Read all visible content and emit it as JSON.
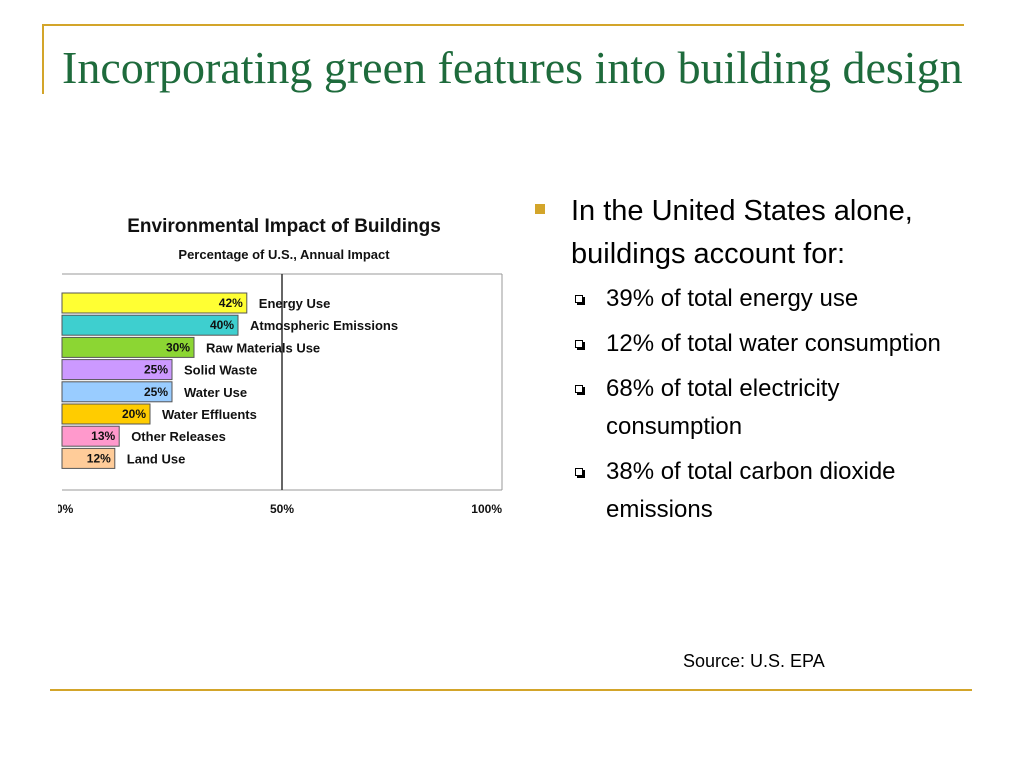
{
  "slide": {
    "title": "Incorporating green features into building design",
    "source": "Source: U.S. EPA",
    "accent_color": "#d3a52a",
    "title_color": "#1e6b3c"
  },
  "bullets": {
    "main": "In the United States alone, buildings account for:",
    "items": [
      "39% of total energy use",
      "12% of total water consumption",
      "68% of total electricity consumption",
      "38% of total carbon dioxide emissions"
    ]
  },
  "chart_data": {
    "type": "bar",
    "orientation": "horizontal",
    "title": "Environmental Impact of Buildings",
    "subtitle": "Percentage of U.S., Annual Impact",
    "categories": [
      "Energy Use",
      "Atmospheric Emissions",
      "Raw Materials Use",
      "Solid Waste",
      "Water Use",
      "Water Effluents",
      "Other Releases",
      "Land Use"
    ],
    "values": [
      42,
      40,
      30,
      25,
      25,
      20,
      13,
      12
    ],
    "data_labels": [
      "42%",
      "40%",
      "30%",
      "25%",
      "25%",
      "20%",
      "13%",
      "12%"
    ],
    "colors": [
      "#ffff33",
      "#3ecfcf",
      "#8cd633",
      "#cc99ff",
      "#99ccff",
      "#ffcc00",
      "#ff99cc",
      "#ffcc99"
    ],
    "xlim": [
      0,
      100
    ],
    "xticks": [
      "0%",
      "50%",
      "100%"
    ],
    "grid": "vertical line at 50%",
    "legend": "none"
  }
}
